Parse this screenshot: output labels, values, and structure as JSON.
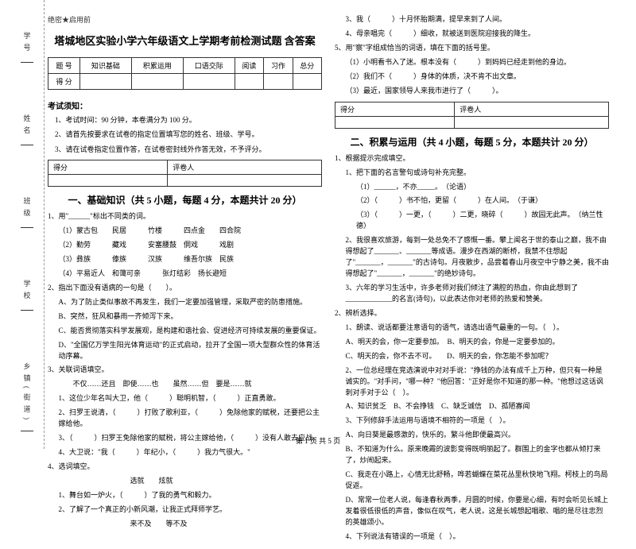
{
  "binding": {
    "labels": [
      "学号",
      "姓名",
      "班级",
      "学校",
      "乡镇(街道)"
    ],
    "marks": [
      "题",
      "答",
      "本",
      "内",
      "线",
      "封",
      "密"
    ]
  },
  "secret": "绝密★启用前",
  "title": "塔城地区实验小学六年级语文上学期考前检测试题 含答案",
  "score_table": {
    "headers": [
      "题 号",
      "知识基础",
      "积累运用",
      "口语交际",
      "阅读",
      "习作",
      "总分"
    ],
    "row2": "得 分"
  },
  "exam_notice_title": "考试须知：",
  "exam_notices": [
    "1、考试时间：90 分钟，本卷满分为 100 分。",
    "2、请首先按要求在试卷的指定位置填写您的姓名、班级、学号。",
    "3、请在试卷指定位置作答，在试卷密封线外作答无效，不予评分。"
  ],
  "mini_table": [
    "得分",
    "评卷人"
  ],
  "section1_title": "一、基础知识（共 5 小题，每题 4 分，本题共计 20 分）",
  "q1": {
    "stem": "1、用\"______\"标出不同类的词。",
    "rows": [
      "（1）蒙古包　　民居　　　竹楼　　　四点金　　四合院",
      "（2）勤劳　　　藏戏　　　安塞腰鼓　侗戏　　　戏剧",
      "（3）彝族　　　傣族　　　汉族　　　维吾尔族　民族",
      "（4）平易近人　和蔼可亲　　　张灯结彩　扬长避短"
    ]
  },
  "q2": {
    "stem": "2、指出下面没有语病的一句是（　　）。",
    "opts": [
      "A、为了防止类似事故不再发生，我们一定要加强管理，采取严密的防患措施。",
      "B、突然，狂风和暴雨一齐倾泻下来。",
      "C、能否贯彻落实科学发展观，是构建和谐社会、促进经济可持续发展的重要保证。",
      "D、\"全国亿万学生阳光体育运动\"的正式启动，拉开了全国一项大型群众性的体育活动序幕。"
    ]
  },
  "q3": {
    "stem": "3、关联词语填空。",
    "line1": "　　不仅……还且　即使……也　　虽然……但　要是……就",
    "items": [
      "1、这位少年名叫大卫，他（　　　）聪明机智，（　　　）正直勇敢。",
      "2、扫罗王说清，（　　　）打败了歌利亚，（　　　）免除他家的赋税，还要把公主嫁给他。",
      "3、（　　　）扫罗王免除他家的赋税，将公主嫁给他，（　　　）没有人敢去应战。",
      "4、大卫说：\"我（　　　）年纪小，（　　　）我力气很大。\""
    ]
  },
  "q4": {
    "stem": "4、选词填空。",
    "line1": "　　　　　　　　　　选就　　炫就",
    "items": [
      "1、舞台如一炉火，（　　　）了我的勇气和毅力。",
      "2、了解了一个真正的小新风潮，让我正式拜师学艺。",
      "　　　　　　　　　　来不及　　等不及"
    ]
  },
  "right_top": [
    "3、我（　　　）十月怀胎期满，提早来到了人间。",
    "4、母亲唱完（　　　）细收，就被送到医院迎接我的降生。"
  ],
  "q5": {
    "stem": "5、用\"察\"字组成恰当的词语，填在下面的括号里。",
    "items": [
      "（1）小明看书入了迷。根本没有（　　　）到妈妈已经走到他的身边。",
      "（2）我们不（　　　）身体的体质，决不肯不出文章。",
      "（3）最近，国家领导人来我市进行了（　　　）。"
    ]
  },
  "section2_title": "二、积累与运用（共 4 小题，每题 5 分，本题共计 20 分）",
  "acc_q1": {
    "stem": "1、根据提示完成填空。",
    "l1": "1、把下面的名言警句或诗句补充完整。",
    "items": [
      "（1）______，不亦_____。　（论语）",
      "（2）（　　　）书不怕，更留（　　　）在人间。　（于谦）",
      "（3）（　　　）一更，（　　　）二更，晓碎（　　　）故园无此声。　（纳兰性德）"
    ],
    "l2": "2、我很喜欢旅游，每到一处总免不了感慨一番。攀上闻名于世的泰山之巅，我不由得想起了_______、_______等成语。漫步在西湖的断桥，我禁不住想起了\"_______，_______\"的古诗句。月夜散步，品尝着春山月夜空中宁静之美，我不由得想起了\"_______，_______\"的绝妙诗句。",
    "l3": "3、六年的学习生活中，许多老师对我们倾注了满腔的热血，你由此想到了_____________的名言(诗句)，以此表达你对老师的热爱和赞美。"
  },
  "acc_q2": {
    "stem": "2、辨析选择。",
    "items": [
      "1、朗读、说话都要注意语句的语气，请选出语气最重的一句。（　）。",
      "A、明天的会，你一定要参加。　B、明天的会，你是一定要参加的。",
      "C、明天的会，你不去不可。　　D、明天的会，你怎能不参加呢？",
      "2、一位总经理在竞选演说中对对手说：\"挣钱的办法有成千上万种，但只有一种是诚实的。\"对手问，\"哪一种？\"他回答：\"正好是你不知道的那一种。\"他想过这话讽刺对手对于公（　）。",
      "A、知识贫乏　B、不会挣钱　C、缺乏诚信　D、孤陋寡闻",
      "3、下列修辞手法运用与语境不相符的一项是（　）。",
      "A、向日葵是最感激的，快乐的。繁斗他即便最高兴。",
      "B、不知道为什么。原来晚霞的波影变得既明丽起了。群围上的金字也都从倾打来了，炒闹起来。",
      "C、我走在小路上，心情无比舒畅，哗若蝴蝶在菜花丛里秋快地飞翔。柯枝上的鸟局促返。",
      "D、常常一位老人说，每逢春秋两季，月圆的时候，你要是心细，有时会听见长城上发着很低很低的声音，像似在叹气，老人说，这是长城想起唱歌、唱的是尽往忠烈的英雄颂小。",
      "4、下列说法有错误的一项是（　）。"
    ]
  },
  "footer": "第 1 页 共 5 页"
}
